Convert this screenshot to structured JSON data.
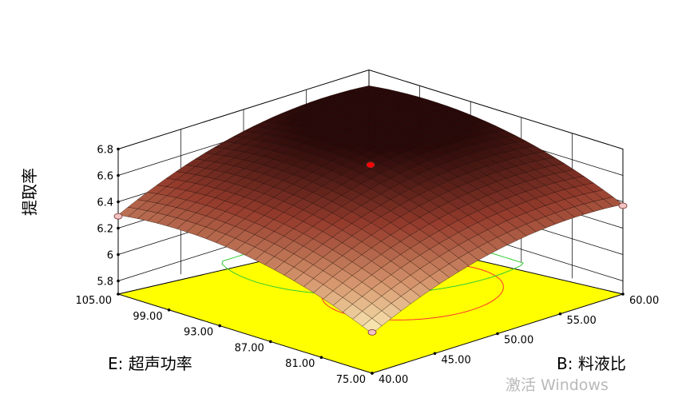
{
  "chart_data": {
    "type": "surface3d",
    "zlabel": "提取率",
    "elabel": "E: 超声功率",
    "blabel": "B: 料液比",
    "z_ticks": [
      "5.8",
      "6",
      "6.2",
      "6.4",
      "6.6",
      "6.8"
    ],
    "e_ticks": [
      "105.00",
      "99.00",
      "93.00",
      "87.00",
      "81.00",
      "75.00"
    ],
    "b_ticks": [
      "40.00",
      "45.00",
      "50.00",
      "55.00",
      "60.00"
    ],
    "zlim": [
      5.7,
      6.8
    ],
    "e_range": [
      75,
      105
    ],
    "b_range": [
      40,
      60
    ],
    "surface_corners": {
      "e75_b40": 6.0,
      "e105_b40": 6.3,
      "e75_b60": 6.38,
      "e105_b60": 6.68
    },
    "design_points": [
      {
        "e": 90,
        "b": 50,
        "z": 6.68,
        "color": "#ff0000"
      },
      {
        "e": 75,
        "b": 40,
        "z": 6.01,
        "color": "#f4c3c3"
      },
      {
        "e": 105,
        "b": 40,
        "z": 6.29,
        "color": "#f4c3c3"
      },
      {
        "e": 75,
        "b": 60,
        "z": 6.37,
        "color": "#f4c3c3"
      }
    ],
    "floor_color": "#ffff00",
    "contours": [
      {
        "color": "#ff3333",
        "e": 88,
        "b": 52,
        "re": 7,
        "rb": 5.5
      },
      {
        "color": "#33cc33",
        "e": 99,
        "b": 57,
        "re": 13,
        "rb": 10
      }
    ],
    "grid": true
  },
  "watermark": {
    "text": "激活 Windows"
  }
}
